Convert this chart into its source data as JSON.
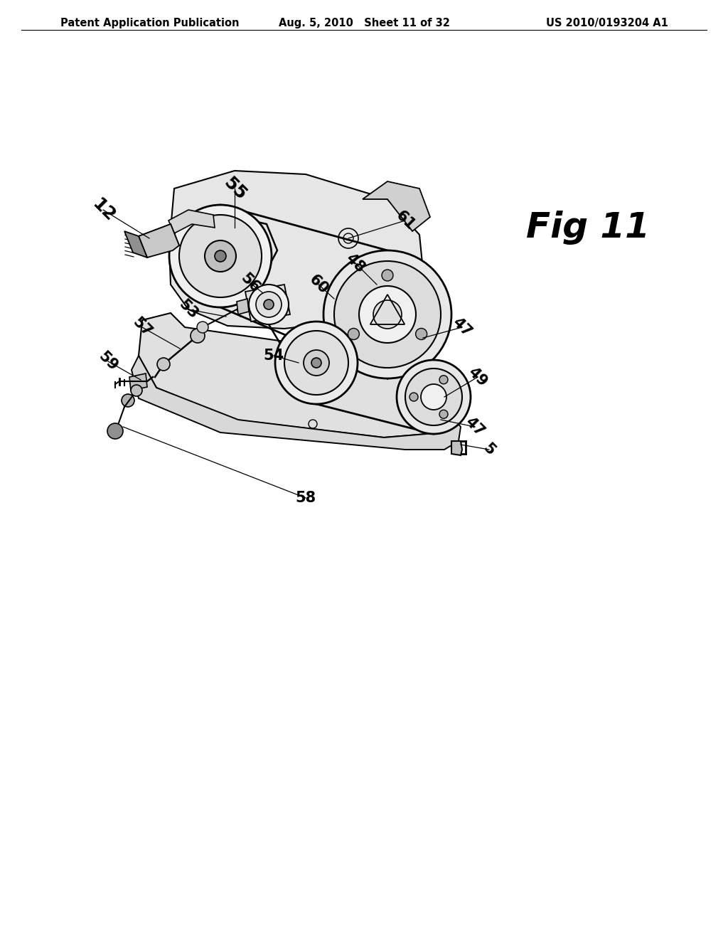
{
  "header_left": "Patent Application Publication",
  "header_center": "Aug. 5, 2010   Sheet 11 of 32",
  "header_right": "US 2010/0193204 A1",
  "fig_label": "Fig 11",
  "background_color": "#ffffff",
  "line_color": "#000000",
  "header_fontsize": 10.5,
  "fig11_fontsize": 36,
  "lw": 1.2
}
